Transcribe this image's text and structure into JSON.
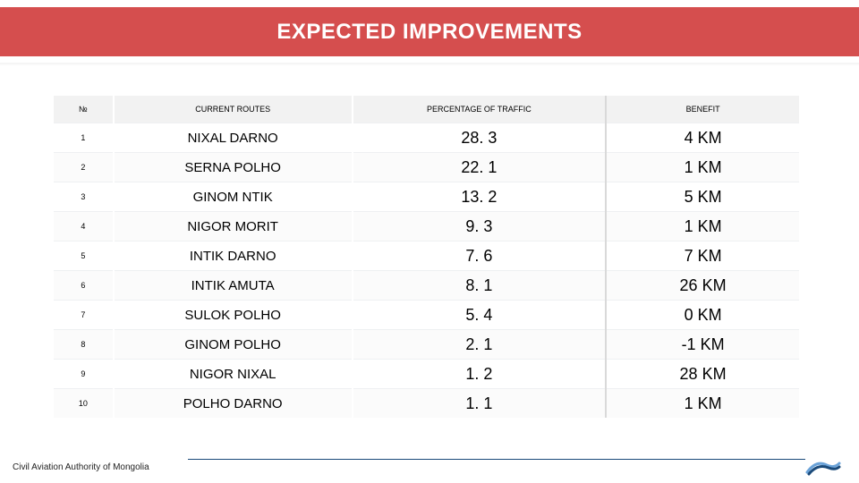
{
  "header": {
    "title": "EXPECTED IMPROVEMENTS"
  },
  "table": {
    "type": "table",
    "background_color": "#ffffff",
    "header_bg": "#f2f2f2",
    "row_alt_bg": "#fbfbfb",
    "border_color": "#eef0f2",
    "separator_color": "#d9d9d9",
    "header_fontsize": 9,
    "body_fontsize_idx": 9,
    "body_fontsize_route": 15,
    "body_fontsize_value": 18,
    "columns": [
      {
        "key": "idx",
        "label": "№",
        "width_pct": 8,
        "align": "center"
      },
      {
        "key": "route",
        "label": "CURRENT ROUTES",
        "width_pct": 32,
        "align": "center"
      },
      {
        "key": "pct",
        "label": "PERCENTAGE OF TRAFFIC",
        "width_pct": 34,
        "align": "center"
      },
      {
        "key": "benefit",
        "label": "BENEFIT",
        "width_pct": 26,
        "align": "center"
      }
    ],
    "rows": [
      {
        "idx": "1",
        "route": "NIXAL DARNO",
        "pct": "28. 3",
        "benefit": "4 KM"
      },
      {
        "idx": "2",
        "route": "SERNA POLHO",
        "pct": "22. 1",
        "benefit": "1 KM"
      },
      {
        "idx": "3",
        "route": "GINOM  NTIK",
        "pct": "13. 2",
        "benefit": "5 KM"
      },
      {
        "idx": "4",
        "route": "NIGOR MORIT",
        "pct": "9. 3",
        "benefit": "1 KM"
      },
      {
        "idx": "5",
        "route": "INTIK DARNO",
        "pct": "7. 6",
        "benefit": "7 KM"
      },
      {
        "idx": "6",
        "route": "INTIK AMUTA",
        "pct": "8. 1",
        "benefit": "26 KM"
      },
      {
        "idx": "7",
        "route": "SULOK POLHO",
        "pct": "5. 4",
        "benefit": "0 KM"
      },
      {
        "idx": "8",
        "route": "GINOM POLHO",
        "pct": "2. 1",
        "benefit": "-1 KM"
      },
      {
        "idx": "9",
        "route": "NIGOR NIXAL",
        "pct": "1. 2",
        "benefit": "28 KM"
      },
      {
        "idx": "10",
        "route": "POLHO DARNO",
        "pct": "1. 1",
        "benefit": "1 KM"
      }
    ]
  },
  "footer": {
    "org": "Civil Aviation Authority of Mongolia"
  },
  "colors": {
    "header_band": "#d54e4e",
    "header_text": "#ffffff",
    "footer_line": "#1a4a7a",
    "logo_primary": "#1a4a7a",
    "logo_accent": "#6aa2d8"
  }
}
